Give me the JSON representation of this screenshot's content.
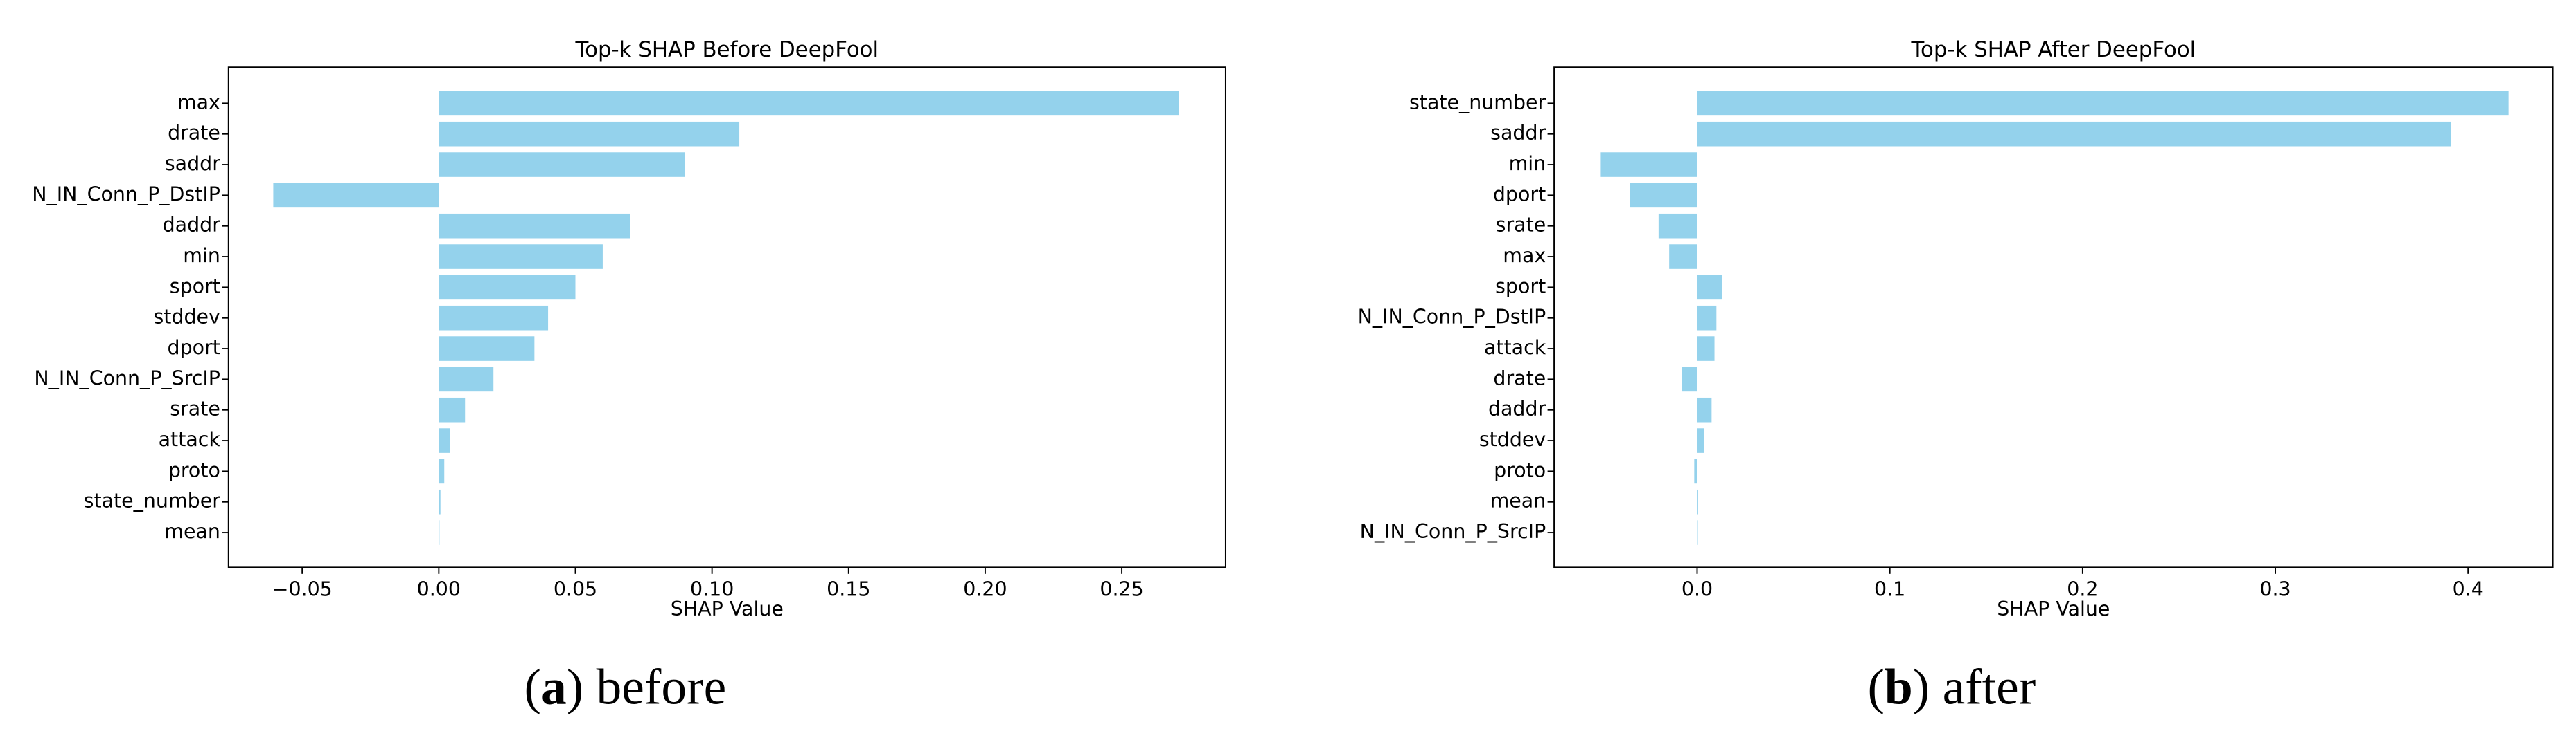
{
  "chart_data": [
    {
      "type": "barh",
      "title": "Top-k SHAP Before DeepFool",
      "xlabel": "SHAP Value",
      "color": "#94d2ec",
      "categories": [
        "max",
        "drate",
        "saddr",
        "N_IN_Conn_P_DstIP",
        "daddr",
        "min",
        "sport",
        "stddev",
        "dport",
        "N_IN_Conn_P_SrcIP",
        "srate",
        "attack",
        "proto",
        "state_number",
        "mean"
      ],
      "values": [
        0.271,
        0.11,
        0.09,
        -0.0606,
        0.07,
        0.06,
        0.05,
        0.04,
        0.035,
        0.02,
        0.0096,
        0.004,
        0.002,
        0.0006,
        0.0002
      ],
      "xlim": [
        -0.077,
        0.288
      ],
      "xticks": [
        {
          "value": -0.05,
          "label": "−0.05"
        },
        {
          "value": 0,
          "label": "0.00"
        },
        0.05,
        {
          "value": 0.1,
          "label": "0.10"
        },
        0.15,
        {
          "value": 0.2,
          "label": "0.20"
        },
        0.25
      ],
      "caption": [
        "(",
        "a",
        ") before"
      ]
    },
    {
      "type": "barh",
      "title": "Top-k SHAP After DeepFool",
      "xlabel": "SHAP Value",
      "color": "#94d2ec",
      "categories": [
        "state_number",
        "saddr",
        "min",
        "dport",
        "srate",
        "max",
        "sport",
        "N_IN_Conn_P_DstIP",
        "attack",
        "drate",
        "daddr",
        "stddev",
        "proto",
        "mean",
        "N_IN_Conn_P_SrcIP"
      ],
      "values": [
        0.421,
        0.391,
        -0.05,
        -0.035,
        -0.02,
        -0.0145,
        0.013,
        0.01,
        0.009,
        -0.008,
        0.0075,
        0.0035,
        -0.0015,
        0.0005,
        0.0003
      ],
      "xlim": [
        -0.0742,
        0.444
      ],
      "xticks": [
        {
          "value": 0,
          "label": "0.0"
        },
        0.1,
        0.2,
        0.3,
        0.4
      ],
      "caption": [
        "(",
        "b",
        ") after"
      ]
    }
  ]
}
